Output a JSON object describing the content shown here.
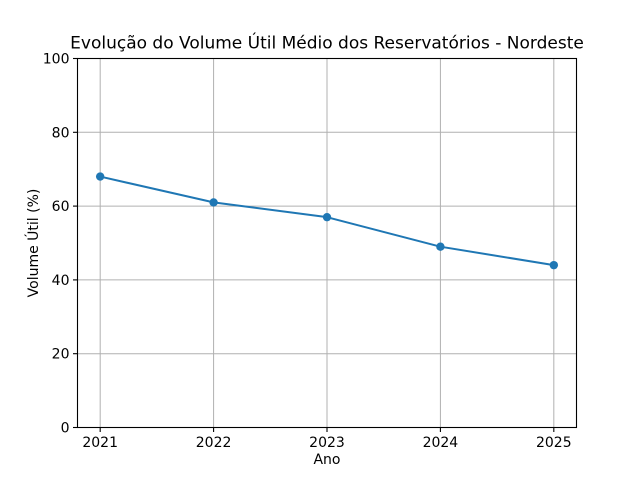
{
  "chart_data": {
    "type": "line",
    "title": "Evolução do Volume Útil Médio dos Reservatórios - Nordeste",
    "xlabel": "Ano",
    "ylabel": "Volume Útil (%)",
    "categories": [
      2021,
      2022,
      2023,
      2024,
      2025
    ],
    "values": [
      68,
      61,
      57,
      49,
      44
    ],
    "ylim": [
      0,
      100
    ],
    "yticks": [
      0,
      20,
      40,
      60,
      80,
      100
    ],
    "grid": true,
    "legend": "none",
    "marker": "circle",
    "colors": {
      "line": "#1f77b4",
      "grid": "#b0b0b0",
      "axis": "#000000",
      "background": "#ffffff"
    }
  }
}
